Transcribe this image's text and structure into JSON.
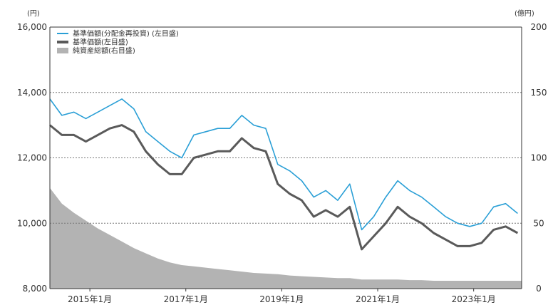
{
  "chart_data": {
    "type": "line",
    "left_unit": "(円)",
    "right_unit": "(億円)",
    "left_axis": {
      "min": 8000,
      "max": 16000,
      "ticks": [
        "8,000",
        "10,000",
        "12,000",
        "14,000",
        "16,000"
      ]
    },
    "right_axis": {
      "min": 0,
      "max": 200,
      "ticks": [
        "0",
        "50",
        "100",
        "150",
        "200"
      ]
    },
    "x_axis": {
      "min": "2014-03",
      "max": "2023-12",
      "tick_labels": [
        "2015年1月",
        "2017年1月",
        "2019年1月",
        "2021年1月",
        "2023年1月"
      ],
      "tick_dates": [
        "2015-01",
        "2017-01",
        "2019-01",
        "2021-01",
        "2023-01"
      ]
    },
    "grid": "horizontal dotted at 10,000 / 12,000 / 14,000",
    "legend": "top-left",
    "series": [
      {
        "name": "基準価額(分配金再投資) (左目盛)",
        "axis": "left",
        "color": "#2a9fd6",
        "points": [
          [
            "2014-03",
            13800
          ],
          [
            "2014-06",
            13300
          ],
          [
            "2014-09",
            13400
          ],
          [
            "2014-12",
            13200
          ],
          [
            "2015-03",
            13400
          ],
          [
            "2015-06",
            13600
          ],
          [
            "2015-09",
            13800
          ],
          [
            "2015-12",
            13500
          ],
          [
            "2016-03",
            12800
          ],
          [
            "2016-06",
            12500
          ],
          [
            "2016-09",
            12200
          ],
          [
            "2016-12",
            12000
          ],
          [
            "2017-03",
            12700
          ],
          [
            "2017-06",
            12800
          ],
          [
            "2017-09",
            12900
          ],
          [
            "2017-12",
            12900
          ],
          [
            "2018-03",
            13300
          ],
          [
            "2018-06",
            13000
          ],
          [
            "2018-09",
            12900
          ],
          [
            "2018-12",
            11800
          ],
          [
            "2019-03",
            11600
          ],
          [
            "2019-06",
            11300
          ],
          [
            "2019-09",
            10800
          ],
          [
            "2019-12",
            11000
          ],
          [
            "2020-03",
            10700
          ],
          [
            "2020-06",
            11200
          ],
          [
            "2020-09",
            9800
          ],
          [
            "2020-12",
            10200
          ],
          [
            "2021-03",
            10800
          ],
          [
            "2021-06",
            11300
          ],
          [
            "2021-09",
            11000
          ],
          [
            "2021-12",
            10800
          ],
          [
            "2022-03",
            10500
          ],
          [
            "2022-06",
            10200
          ],
          [
            "2022-09",
            10000
          ],
          [
            "2022-12",
            9900
          ],
          [
            "2023-03",
            10000
          ],
          [
            "2023-06",
            10500
          ],
          [
            "2023-09",
            10600
          ],
          [
            "2023-12",
            10300
          ]
        ]
      },
      {
        "name": "基準価額(左目盛)",
        "axis": "left",
        "color": "#5a5a5a",
        "points": [
          [
            "2014-03",
            13000
          ],
          [
            "2014-06",
            12700
          ],
          [
            "2014-09",
            12700
          ],
          [
            "2014-12",
            12500
          ],
          [
            "2015-03",
            12700
          ],
          [
            "2015-06",
            12900
          ],
          [
            "2015-09",
            13000
          ],
          [
            "2015-12",
            12800
          ],
          [
            "2016-03",
            12200
          ],
          [
            "2016-06",
            11800
          ],
          [
            "2016-09",
            11500
          ],
          [
            "2016-12",
            11500
          ],
          [
            "2017-03",
            12000
          ],
          [
            "2017-06",
            12100
          ],
          [
            "2017-09",
            12200
          ],
          [
            "2017-12",
            12200
          ],
          [
            "2018-03",
            12600
          ],
          [
            "2018-06",
            12300
          ],
          [
            "2018-09",
            12200
          ],
          [
            "2018-12",
            11200
          ],
          [
            "2019-03",
            10900
          ],
          [
            "2019-06",
            10700
          ],
          [
            "2019-09",
            10200
          ],
          [
            "2019-12",
            10400
          ],
          [
            "2020-03",
            10200
          ],
          [
            "2020-06",
            10500
          ],
          [
            "2020-09",
            9200
          ],
          [
            "2020-12",
            9600
          ],
          [
            "2021-03",
            10000
          ],
          [
            "2021-06",
            10500
          ],
          [
            "2021-09",
            10200
          ],
          [
            "2021-12",
            10000
          ],
          [
            "2022-03",
            9700
          ],
          [
            "2022-06",
            9500
          ],
          [
            "2022-09",
            9300
          ],
          [
            "2022-12",
            9300
          ],
          [
            "2023-03",
            9400
          ],
          [
            "2023-06",
            9800
          ],
          [
            "2023-09",
            9900
          ],
          [
            "2023-12",
            9700
          ]
        ]
      },
      {
        "name": "純資産総額(右目盛)",
        "axis": "right",
        "color": "#b3b3b3",
        "points": [
          [
            "2014-03",
            77
          ],
          [
            "2014-06",
            65
          ],
          [
            "2014-09",
            58
          ],
          [
            "2014-12",
            52
          ],
          [
            "2015-03",
            46
          ],
          [
            "2015-06",
            41
          ],
          [
            "2015-09",
            36
          ],
          [
            "2015-12",
            31
          ],
          [
            "2016-03",
            27
          ],
          [
            "2016-06",
            23
          ],
          [
            "2016-09",
            20
          ],
          [
            "2016-12",
            18
          ],
          [
            "2017-03",
            17
          ],
          [
            "2017-06",
            16
          ],
          [
            "2017-09",
            15
          ],
          [
            "2017-12",
            14
          ],
          [
            "2018-03",
            13
          ],
          [
            "2018-06",
            12
          ],
          [
            "2018-09",
            11.5
          ],
          [
            "2018-12",
            11
          ],
          [
            "2019-03",
            10
          ],
          [
            "2019-06",
            9.5
          ],
          [
            "2019-09",
            9
          ],
          [
            "2019-12",
            8.5
          ],
          [
            "2020-03",
            8
          ],
          [
            "2020-06",
            8
          ],
          [
            "2020-09",
            7
          ],
          [
            "2020-12",
            7
          ],
          [
            "2021-03",
            7
          ],
          [
            "2021-06",
            7
          ],
          [
            "2021-09",
            6.5
          ],
          [
            "2021-12",
            6.5
          ],
          [
            "2022-03",
            6
          ],
          [
            "2022-06",
            6
          ],
          [
            "2022-09",
            6
          ],
          [
            "2022-12",
            6
          ],
          [
            "2023-03",
            6
          ],
          [
            "2023-06",
            6
          ],
          [
            "2023-09",
            6
          ],
          [
            "2023-12",
            6
          ]
        ]
      }
    ]
  }
}
